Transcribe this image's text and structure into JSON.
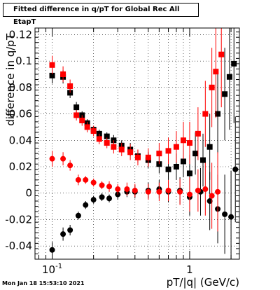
{
  "title": "Fitted difference in q/pT for Global Rec All EtapT",
  "timestamp": "Mon Jan 18 15:53:10 2021",
  "chart_data": {
    "type": "scatter",
    "xlabel": "pT/|q| (GeV/c)",
    "ylabel": "difference in q/pT",
    "x_scale": "log",
    "xlim": [
      0.075,
      2.3
    ],
    "ylim": [
      -0.05,
      0.125
    ],
    "x_ticks": [
      {
        "value": 0.1,
        "label": "10^-1"
      },
      {
        "value": 1,
        "label": "1"
      }
    ],
    "y_ticks": [
      {
        "value": -0.04,
        "label": "-0.04"
      },
      {
        "value": -0.02,
        "label": "-0.02"
      },
      {
        "value": 0,
        "label": "0"
      },
      {
        "value": 0.02,
        "label": "0.02"
      },
      {
        "value": 0.04,
        "label": "0.04"
      },
      {
        "value": 0.06,
        "label": "0.06"
      },
      {
        "value": 0.08,
        "label": "0.08"
      },
      {
        "value": 0.1,
        "label": "0.1"
      },
      {
        "value": 0.12,
        "label": "0.12"
      }
    ],
    "grid": true,
    "colors": {
      "black": "#000000",
      "red": "#ff0000"
    },
    "series": [
      {
        "color": "#000000",
        "marker": "square",
        "points": [
          [
            0.1,
            0.089,
            0.006
          ],
          [
            0.12,
            0.088,
            0.005
          ],
          [
            0.135,
            0.076,
            0.004
          ],
          [
            0.15,
            0.065,
            0.004
          ],
          [
            0.165,
            0.059,
            0.003
          ],
          [
            0.18,
            0.053,
            0.003
          ],
          [
            0.2,
            0.048,
            0.003
          ],
          [
            0.22,
            0.045,
            0.003
          ],
          [
            0.25,
            0.043,
            0.003
          ],
          [
            0.28,
            0.04,
            0.004
          ],
          [
            0.32,
            0.036,
            0.004
          ],
          [
            0.37,
            0.033,
            0.005
          ],
          [
            0.42,
            0.028,
            0.005
          ],
          [
            0.5,
            0.025,
            0.006
          ],
          [
            0.6,
            0.022,
            0.007
          ],
          [
            0.7,
            0.018,
            0.008
          ],
          [
            0.8,
            0.02,
            0.01
          ],
          [
            0.9,
            0.024,
            0.012
          ],
          [
            1.0,
            0.015,
            0.014
          ],
          [
            1.1,
            0.03,
            0.016
          ],
          [
            1.25,
            0.025,
            0.02
          ],
          [
            1.4,
            0.035,
            0.025
          ],
          [
            1.6,
            0.06,
            0.03
          ],
          [
            1.8,
            0.075,
            0.035
          ],
          [
            1.95,
            0.088,
            0.04
          ],
          [
            2.1,
            0.098,
            0.045
          ]
        ]
      },
      {
        "color": "#000000",
        "marker": "circle",
        "points": [
          [
            0.1,
            -0.043,
            0.006
          ],
          [
            0.12,
            -0.031,
            0.005
          ],
          [
            0.135,
            -0.028,
            0.004
          ],
          [
            0.155,
            -0.017,
            0.003
          ],
          [
            0.175,
            -0.009,
            0.003
          ],
          [
            0.2,
            -0.005,
            0.003
          ],
          [
            0.23,
            -0.003,
            0.003
          ],
          [
            0.26,
            -0.004,
            0.003
          ],
          [
            0.3,
            -0.001,
            0.004
          ],
          [
            0.35,
            0.001,
            0.004
          ],
          [
            0.4,
            0.001,
            0.005
          ],
          [
            0.5,
            0.002,
            0.006
          ],
          [
            0.6,
            0.003,
            0.007
          ],
          [
            0.7,
            0.001,
            0.008
          ],
          [
            0.85,
            0.002,
            0.01
          ],
          [
            1.0,
            -0.003,
            0.014
          ],
          [
            1.2,
            0.001,
            0.018
          ],
          [
            1.4,
            -0.006,
            0.022
          ],
          [
            1.6,
            -0.012,
            0.026
          ],
          [
            1.8,
            -0.016,
            0.03
          ],
          [
            2.0,
            -0.018,
            0.035
          ],
          [
            2.15,
            0.018,
            0.04
          ]
        ]
      },
      {
        "color": "#ff0000",
        "marker": "square",
        "points": [
          [
            0.1,
            0.097,
            0.007
          ],
          [
            0.12,
            0.09,
            0.006
          ],
          [
            0.135,
            0.081,
            0.005
          ],
          [
            0.15,
            0.059,
            0.004
          ],
          [
            0.165,
            0.055,
            0.004
          ],
          [
            0.18,
            0.05,
            0.004
          ],
          [
            0.2,
            0.047,
            0.004
          ],
          [
            0.22,
            0.041,
            0.004
          ],
          [
            0.25,
            0.038,
            0.004
          ],
          [
            0.28,
            0.035,
            0.005
          ],
          [
            0.32,
            0.033,
            0.005
          ],
          [
            0.37,
            0.031,
            0.006
          ],
          [
            0.42,
            0.027,
            0.006
          ],
          [
            0.5,
            0.027,
            0.007
          ],
          [
            0.6,
            0.03,
            0.008
          ],
          [
            0.7,
            0.032,
            0.01
          ],
          [
            0.8,
            0.035,
            0.012
          ],
          [
            0.9,
            0.04,
            0.014
          ],
          [
            1.0,
            0.038,
            0.016
          ],
          [
            1.15,
            0.045,
            0.02
          ],
          [
            1.3,
            0.06,
            0.025
          ],
          [
            1.45,
            0.08,
            0.03
          ],
          [
            1.55,
            0.092,
            0.035
          ],
          [
            1.7,
            0.105,
            0.04
          ]
        ]
      },
      {
        "color": "#ff0000",
        "marker": "circle",
        "points": [
          [
            0.1,
            0.026,
            0.006
          ],
          [
            0.12,
            0.026,
            0.005
          ],
          [
            0.135,
            0.021,
            0.004
          ],
          [
            0.155,
            0.01,
            0.004
          ],
          [
            0.175,
            0.01,
            0.003
          ],
          [
            0.2,
            0.008,
            0.003
          ],
          [
            0.23,
            0.006,
            0.003
          ],
          [
            0.26,
            0.005,
            0.004
          ],
          [
            0.3,
            0.003,
            0.004
          ],
          [
            0.35,
            0.003,
            0.005
          ],
          [
            0.4,
            0.002,
            0.005
          ],
          [
            0.5,
            0.001,
            0.006
          ],
          [
            0.6,
            0.001,
            0.007
          ],
          [
            0.7,
            0.002,
            0.008
          ],
          [
            0.85,
            0.001,
            0.01
          ],
          [
            1.0,
            -0.001,
            0.013
          ],
          [
            1.15,
            0.002,
            0.016
          ],
          [
            1.3,
            0.003,
            0.02
          ],
          [
            1.45,
            -0.002,
            0.025
          ],
          [
            1.6,
            0.001,
            0.03
          ]
        ]
      }
    ]
  }
}
